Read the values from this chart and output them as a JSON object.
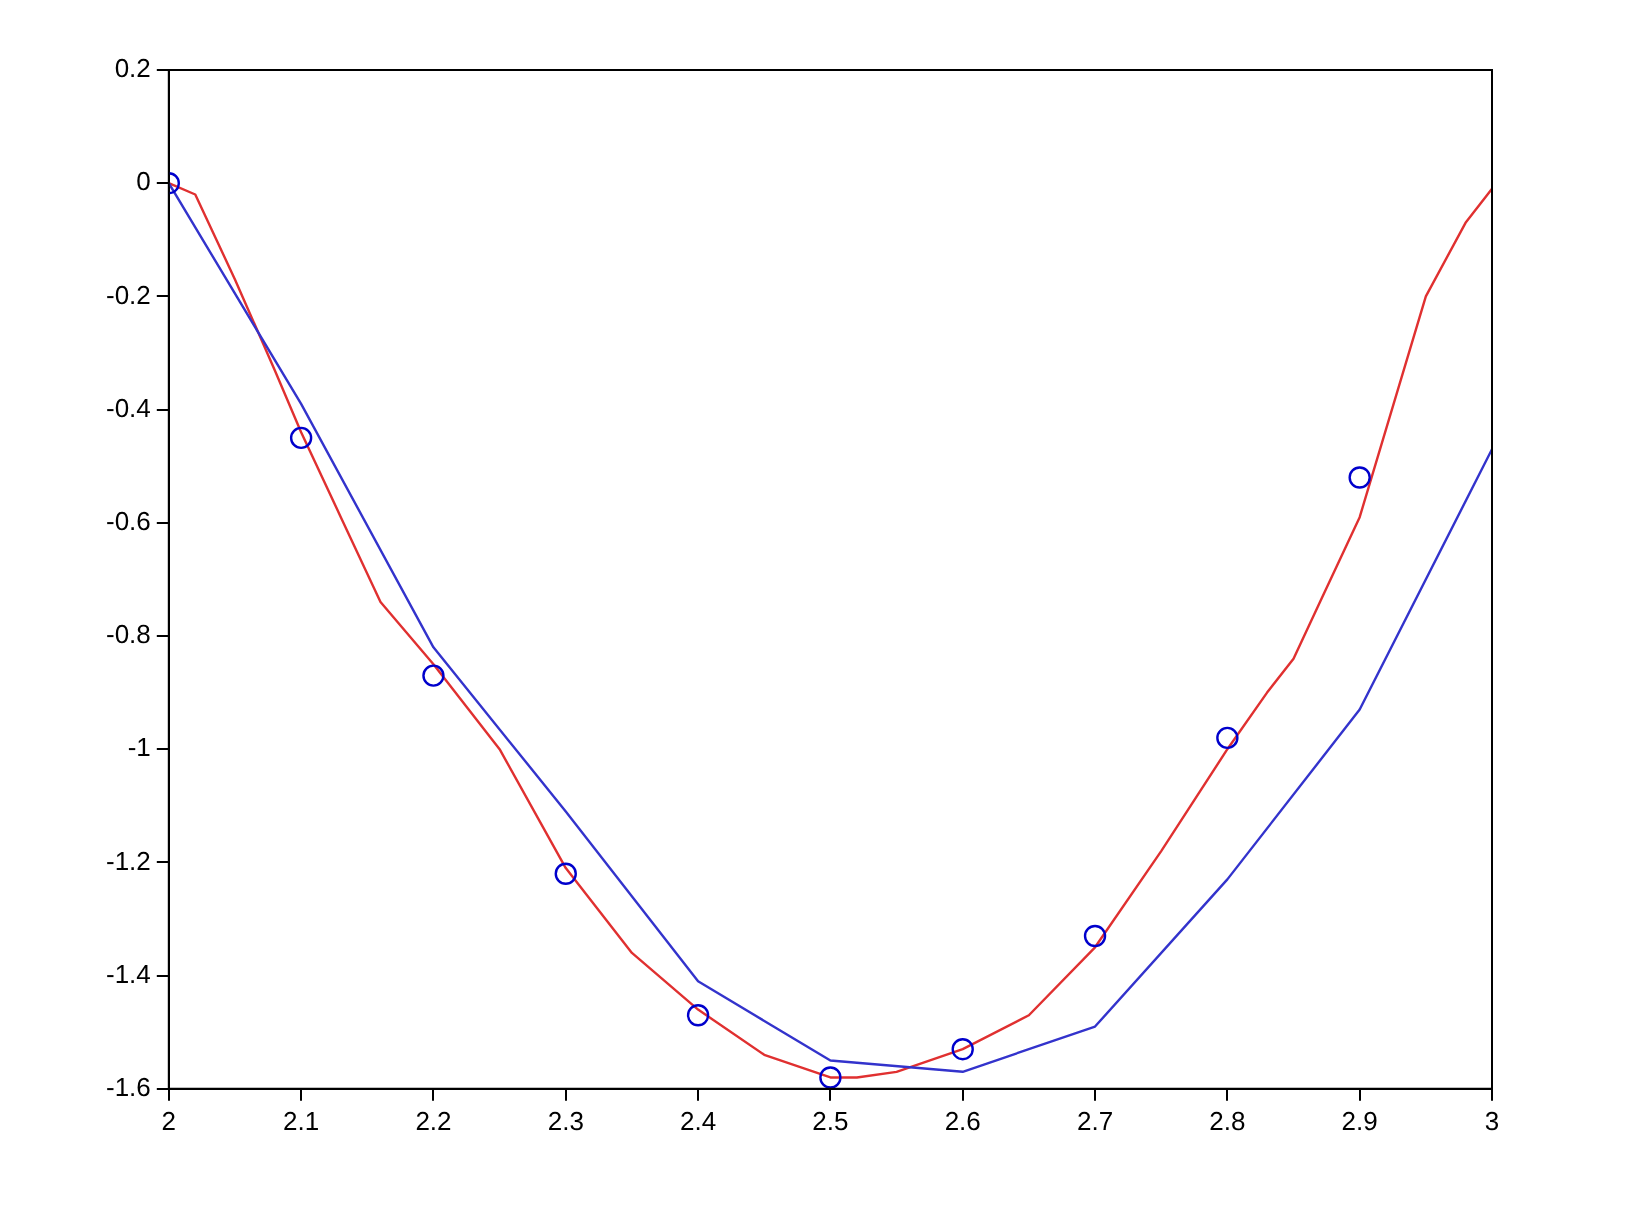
{
  "chart_data": {
    "type": "line",
    "xlim": [
      2,
      3
    ],
    "ylim": [
      -1.6,
      0.2
    ],
    "xticks": [
      2,
      2.1,
      2.2,
      2.3,
      2.4,
      2.5,
      2.6,
      2.7,
      2.8,
      2.9,
      3
    ],
    "yticks": [
      -1.6,
      -1.4,
      -1.2,
      -1,
      -0.8,
      -0.6,
      -0.4,
      -0.2,
      0,
      0.2
    ],
    "grid": false,
    "legend": false,
    "series": [
      {
        "color": "#e03030",
        "marker": "none",
        "x": [
          2,
          2.02,
          2.05,
          2.08,
          2.1,
          2.13,
          2.16,
          2.2,
          2.25,
          2.3,
          2.35,
          2.4,
          2.45,
          2.5,
          2.52,
          2.55,
          2.6,
          2.65,
          2.7,
          2.75,
          2.8,
          2.83,
          2.85,
          2.87,
          2.9,
          2.95,
          2.98,
          3
        ],
        "values": [
          0,
          -0.02,
          -0.17,
          -0.33,
          -0.44,
          -0.59,
          -0.74,
          -0.85,
          -1.0,
          -1.21,
          -1.36,
          -1.46,
          -1.54,
          -1.58,
          -1.58,
          -1.57,
          -1.53,
          -1.47,
          -1.35,
          -1.18,
          -1.0,
          -0.9,
          -0.84,
          -0.74,
          -0.59,
          -0.2,
          -0.07,
          -0.01
        ]
      },
      {
        "color": "#3333cc",
        "marker": "none",
        "x": [
          2,
          2.1,
          2.2,
          2.3,
          2.4,
          2.5,
          2.6,
          2.7,
          2.8,
          2.9,
          3
        ],
        "values": [
          0,
          -0.39,
          -0.82,
          -1.11,
          -1.41,
          -1.55,
          -1.57,
          -1.49,
          -1.23,
          -0.93,
          -0.47
        ]
      },
      {
        "type": "scatter",
        "color": "#0000cc",
        "marker": "circle",
        "x": [
          2,
          2.1,
          2.2,
          2.3,
          2.4,
          2.5,
          2.6,
          2.7,
          2.8,
          2.9
        ],
        "values": [
          0,
          -0.45,
          -0.87,
          -1.22,
          -1.47,
          -1.58,
          -1.53,
          -1.33,
          -0.98,
          -0.52
        ]
      }
    ]
  }
}
